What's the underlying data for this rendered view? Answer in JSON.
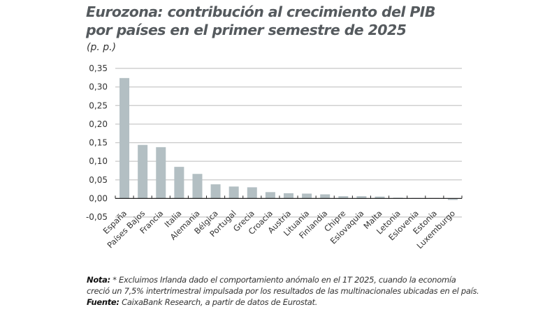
{
  "chart_data": {
    "type": "bar",
    "title": "Eurozona: contribución al crecimiento del PIB por países en el primer semestre de 2025",
    "title_lines": [
      "Eurozona: contribución al crecimiento del PIB",
      "por países en el primer semestre de 2025"
    ],
    "unit": "(p. p.)",
    "categories": [
      "España",
      "Países Bajos",
      "Francia",
      "Italia",
      "Alemania",
      "Bélgica",
      "Portugal",
      "Grecia",
      "Croacia",
      "Austria",
      "Lituania",
      "Finlandia",
      "Chipre",
      "Eslovaquia",
      "Malta",
      "Letonia",
      "Eslovenia",
      "Estonia",
      "Luxemburgo"
    ],
    "values": [
      0.324,
      0.144,
      0.138,
      0.085,
      0.066,
      0.038,
      0.032,
      0.03,
      0.017,
      0.014,
      0.013,
      0.011,
      0.006,
      0.006,
      0.005,
      0.002,
      0.001,
      0.001,
      -0.004
    ],
    "ylim": [
      -0.05,
      0.35
    ],
    "yticks": [
      "-0,05",
      "0,00",
      "0,05",
      "0,10",
      "0,15",
      "0,20",
      "0,25",
      "0,30",
      "0,35"
    ],
    "ytick_values": [
      -0.05,
      0,
      0.05,
      0.1,
      0.15,
      0.2,
      0.25,
      0.3,
      0.35
    ],
    "grid": true,
    "bar_color": "#b3bfc3"
  },
  "notes": {
    "nota_label": "Nota:",
    "nota_line1": "* Excluimos Irlanda dado el comportamiento anómalo en el 1T 2025, cuando la economía",
    "nota_line2": "creció un 7,5% intertrimestral impulsada por los resultados de las multinacionales ubicadas en el país.",
    "fuente_label": "Fuente:",
    "fuente_text": "CaixaBank Research, a partir de datos de Eurostat."
  }
}
